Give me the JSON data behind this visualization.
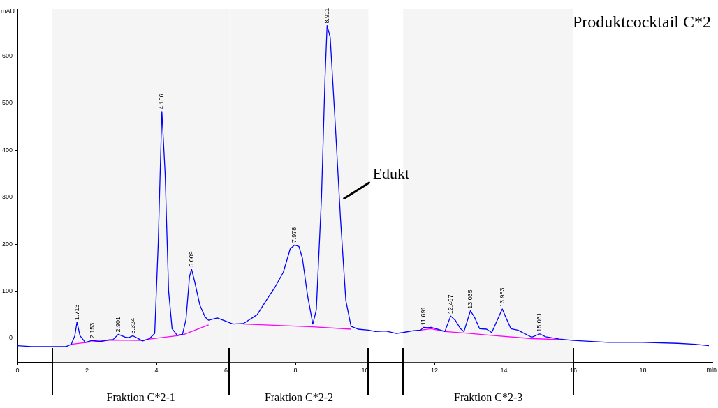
{
  "chart_data": {
    "type": "line",
    "title": "Produktcocktail C*2",
    "xlabel": "min",
    "ylabel": "mAU",
    "xlim": [
      0,
      20
    ],
    "xticks": [
      0,
      2,
      4,
      6,
      8,
      10,
      12,
      14,
      16,
      18
    ],
    "ylim": [
      -51,
      700
    ],
    "yticks": [
      0,
      100,
      200,
      300,
      400,
      500,
      600
    ],
    "grid": false,
    "legend": false,
    "marker": "none",
    "line_style": "solid",
    "series": [
      {
        "color": "#0000ff",
        "x": [
          0,
          0.4,
          1.4,
          1.55,
          1.65,
          1.713,
          1.8,
          1.95,
          2.153,
          2.4,
          2.6,
          2.75,
          2.901,
          3.1,
          3.2,
          3.324,
          3.5,
          3.6,
          3.8,
          3.95,
          4.05,
          4.156,
          4.25,
          4.35,
          4.45,
          4.6,
          4.75,
          4.85,
          4.95,
          5.009,
          5.1,
          5.25,
          5.4,
          5.5,
          5.75,
          6.0,
          6.2,
          6.5,
          6.9,
          7.2,
          7.4,
          7.65,
          7.85,
          7.978,
          8.1,
          8.2,
          8.35,
          8.5,
          8.6,
          8.75,
          8.85,
          8.911,
          9.0,
          9.15,
          9.3,
          9.45,
          9.6,
          9.8,
          10.1,
          10.3,
          10.6,
          10.9,
          11.1,
          11.4,
          11.6,
          11.691,
          11.8,
          11.9,
          12.1,
          12.3,
          12.467,
          12.6,
          12.75,
          12.85,
          13.035,
          13.15,
          13.3,
          13.5,
          13.65,
          13.953,
          14.05,
          14.2,
          14.4,
          14.8,
          15.031,
          15.2,
          15.6,
          16,
          17,
          18,
          19,
          19.5,
          19.9
        ],
        "values": [
          -16,
          -18,
          -18,
          -13,
          5,
          34,
          5,
          -9,
          -5,
          -7,
          -4,
          -3,
          8,
          2,
          1,
          5,
          -2,
          -6,
          -1,
          10,
          200,
          482,
          350,
          100,
          20,
          6,
          8,
          40,
          130,
          147,
          120,
          70,
          45,
          38,
          43,
          36,
          30,
          31,
          50,
          85,
          107,
          140,
          190,
          198,
          195,
          170,
          90,
          30,
          60,
          300,
          550,
          665,
          640,
          450,
          250,
          80,
          25,
          19,
          17,
          14,
          15,
          10,
          12,
          16,
          17,
          23,
          22,
          23,
          19,
          14,
          47,
          38,
          20,
          14,
          58,
          45,
          20,
          19,
          12,
          62,
          45,
          20,
          17,
          2,
          9,
          3,
          -2,
          -5,
          -9,
          -9,
          -11,
          -13,
          -16
        ]
      },
      {
        "color": "#ff00ff",
        "x": [
          1.55,
          2.0,
          2.7,
          3.6,
          3.8,
          4.6,
          4.8,
          5.5,
          5.6,
          6.5,
          8.5,
          9.6,
          10.0,
          11.5,
          11.9,
          12.3,
          12.85,
          13.65,
          14.8,
          15.6
        ],
        "values": [
          -13,
          -9,
          -4,
          -5,
          -2,
          5,
          8,
          28,
          null,
          30,
          24,
          19,
          null,
          16,
          20,
          14,
          11,
          6,
          -1,
          -3
        ]
      }
    ],
    "annotations": [
      {
        "text": "1.713",
        "x": 1.713,
        "y": 34
      },
      {
        "text": "2.153",
        "x": 2.153,
        "y": -5
      },
      {
        "text": "2.901",
        "x": 2.901,
        "y": 8
      },
      {
        "text": "3.324",
        "x": 3.324,
        "y": 5
      },
      {
        "text": "4.156",
        "x": 4.156,
        "y": 482
      },
      {
        "text": "5.009",
        "x": 5.009,
        "y": 147
      },
      {
        "text": "7.978",
        "x": 7.978,
        "y": 198
      },
      {
        "text": "8.911",
        "x": 8.911,
        "y": 665
      },
      {
        "text": "11.691",
        "x": 11.691,
        "y": 23
      },
      {
        "text": "12.467",
        "x": 12.467,
        "y": 47
      },
      {
        "text": "13.035",
        "x": 13.035,
        "y": 58
      },
      {
        "text": "13.953",
        "x": 13.953,
        "y": 62
      },
      {
        "text": "15.031",
        "x": 15.031,
        "y": 9
      },
      {
        "text": "Edukt",
        "x": 9.3,
        "y": 290
      }
    ],
    "bands": [
      {
        "axis": "x",
        "from": 1.0,
        "to": 6.1,
        "label": "Fraktion C*2-1",
        "color": "#f5f5f5"
      },
      {
        "axis": "x",
        "from": 6.1,
        "to": 10.1,
        "label": "Fraktion C*2-2",
        "color": "#f5f5f5"
      },
      {
        "axis": "x",
        "from": 11.1,
        "to": 16.0,
        "label": "Fraktion C*2-3",
        "color": "#f5f5f5"
      }
    ]
  }
}
